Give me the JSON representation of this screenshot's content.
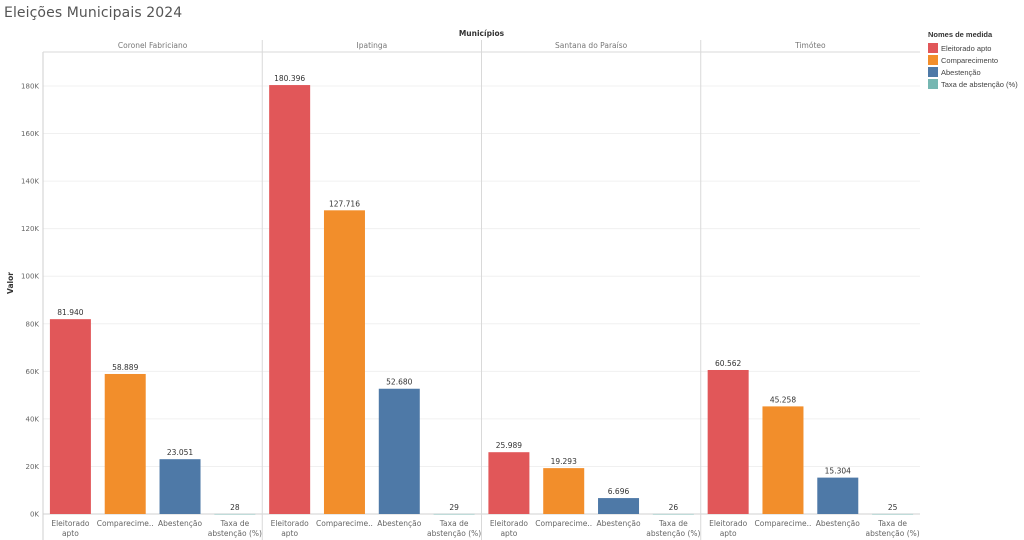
{
  "dashboard": {
    "title": "Eleições Municipais 2024"
  },
  "legend": {
    "title": "Nomes de medida",
    "items": [
      {
        "label": "Eleitorado apto",
        "color": "#e15759"
      },
      {
        "label": "Comparecimento",
        "color": "#f28e2b"
      },
      {
        "label": "Abestenção",
        "color": "#4e79a7"
      },
      {
        "label": "Taxa de abstenção (%)",
        "color": "#76b7b2"
      }
    ]
  },
  "chart_data": {
    "type": "bar",
    "column_header": "Municípios",
    "ylabel": "Valor",
    "ylim": [
      0,
      190000
    ],
    "yticks": [
      {
        "value": 0,
        "label": "0K"
      },
      {
        "value": 20000,
        "label": "20K"
      },
      {
        "value": 40000,
        "label": "40K"
      },
      {
        "value": 60000,
        "label": "60K"
      },
      {
        "value": 80000,
        "label": "80K"
      },
      {
        "value": 100000,
        "label": "100K"
      },
      {
        "value": 120000,
        "label": "120K"
      },
      {
        "value": 140000,
        "label": "140K"
      },
      {
        "value": 160000,
        "label": "160K"
      },
      {
        "value": 180000,
        "label": "180K"
      }
    ],
    "grid": true,
    "legend_position": "right",
    "categories": [
      [
        "Eleitorado",
        "apto"
      ],
      [
        "Comparecime.."
      ],
      [
        "Abestenção"
      ],
      [
        "Taxa de",
        "abstenção (%)"
      ]
    ],
    "colors": [
      "#e15759",
      "#f28e2b",
      "#4e79a7",
      "#76b7b2"
    ],
    "panels": [
      {
        "name": "Coronel Fabriciano",
        "values": [
          81940,
          58889,
          23051,
          28
        ],
        "labels": [
          "81.940",
          "58.889",
          "23.051",
          "28"
        ]
      },
      {
        "name": "Ipatinga",
        "values": [
          180396,
          127716,
          52680,
          29
        ],
        "labels": [
          "180.396",
          "127.716",
          "52.680",
          "29"
        ]
      },
      {
        "name": "Santana do Paraíso",
        "values": [
          25989,
          19293,
          6696,
          26
        ],
        "labels": [
          "25.989",
          "19.293",
          "6.696",
          "26"
        ]
      },
      {
        "name": "Timóteo",
        "values": [
          60562,
          45258,
          15304,
          25
        ],
        "labels": [
          "60.562",
          "45.258",
          "15.304",
          "25"
        ]
      }
    ]
  }
}
